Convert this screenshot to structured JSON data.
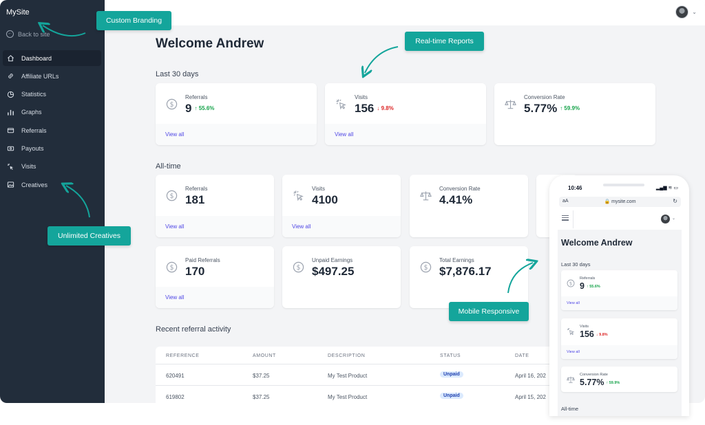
{
  "brand": {
    "accent": "#14a59b",
    "sidebar_bg": "#222d3b",
    "link": "#4f46e5",
    "up": "#16a34a",
    "down": "#dc2626"
  },
  "sidebar": {
    "site_name": "MySite",
    "back_label": "Back to site",
    "items": [
      {
        "label": "Dashboard",
        "icon": "home-icon",
        "active": true
      },
      {
        "label": "Affiliate URLs",
        "icon": "link-icon"
      },
      {
        "label": "Statistics",
        "icon": "pie-chart-icon"
      },
      {
        "label": "Graphs",
        "icon": "bar-chart-icon"
      },
      {
        "label": "Referrals",
        "icon": "card-icon"
      },
      {
        "label": "Payouts",
        "icon": "wallet-icon"
      },
      {
        "label": "Visits",
        "icon": "cursor-click-icon"
      },
      {
        "label": "Creatives",
        "icon": "image-icon"
      }
    ]
  },
  "header": {
    "user_avatar": "avatar-photo",
    "caret": "chevron-down-icon"
  },
  "main": {
    "welcome": "Welcome Andrew",
    "last30_title": "Last 30 days",
    "last30": [
      {
        "label": "Referrals",
        "value": "9",
        "change": "↑ 55.6%",
        "trend": "up",
        "link": "View all",
        "icon": "dollar-icon"
      },
      {
        "label": "Visits",
        "value": "156",
        "change": "↓ 9.8%",
        "trend": "down",
        "link": "View all",
        "icon": "cursor-click-icon"
      },
      {
        "label": "Conversion Rate",
        "value": "5.77%",
        "change": "↑ 59.9%",
        "trend": "up",
        "icon": "scale-icon"
      }
    ],
    "alltime_title": "All-time",
    "alltime": [
      {
        "label": "Referrals",
        "value": "181",
        "link": "View all",
        "icon": "dollar-icon"
      },
      {
        "label": "Visits",
        "value": "4100",
        "link": "View all",
        "icon": "cursor-click-icon"
      },
      {
        "label": "Conversion Rate",
        "value": "4.41%",
        "icon": "scale-icon"
      },
      {
        "label": "Paid Referrals",
        "value": "170",
        "link": "View all",
        "icon": "dollar-icon"
      },
      {
        "label": "Unpaid Earnings",
        "value": "$497.25",
        "icon": "dollar-icon"
      },
      {
        "label": "Total Earnings",
        "value": "$7,876.17",
        "icon": "dollar-icon"
      }
    ],
    "recent_title": "Recent referral activity",
    "table": {
      "columns": [
        "REFERENCE",
        "AMOUNT",
        "DESCRIPTION",
        "STATUS",
        "DATE"
      ],
      "rows": [
        {
          "reference": "620491",
          "amount": "$37.25",
          "description": "My Test Product",
          "status": "Unpaid",
          "date": "April 16, 202"
        },
        {
          "reference": "619802",
          "amount": "$37.25",
          "description": "My Test Product",
          "status": "Unpaid",
          "date": "April 15, 202"
        }
      ]
    }
  },
  "phone": {
    "time": "10:46",
    "signal": "▂▄▆ ≋ ▭",
    "aa": "aA",
    "url": "🔒 mysite.com",
    "reload": "↻",
    "welcome": "Welcome Andrew",
    "last30_title": "Last 30 days",
    "cards": [
      {
        "label": "Referrals",
        "value": "9",
        "change": "↑ 55.6%",
        "trend": "up",
        "link": "View all",
        "icon": "dollar-icon"
      },
      {
        "label": "Visits",
        "value": "156",
        "change": "↓ 9.8%",
        "trend": "down",
        "link": "View all",
        "icon": "cursor-click-icon"
      },
      {
        "label": "Conversion Rate",
        "value": "5.77%",
        "change": "↑ 59.9%",
        "trend": "up",
        "icon": "scale-icon"
      }
    ],
    "alltime_title": "All-time"
  },
  "callouts": {
    "branding": "Custom Branding",
    "reports": "Real-time Reports",
    "creatives": "Unlimited Creatives",
    "mobile": "Mobile Responsive"
  }
}
